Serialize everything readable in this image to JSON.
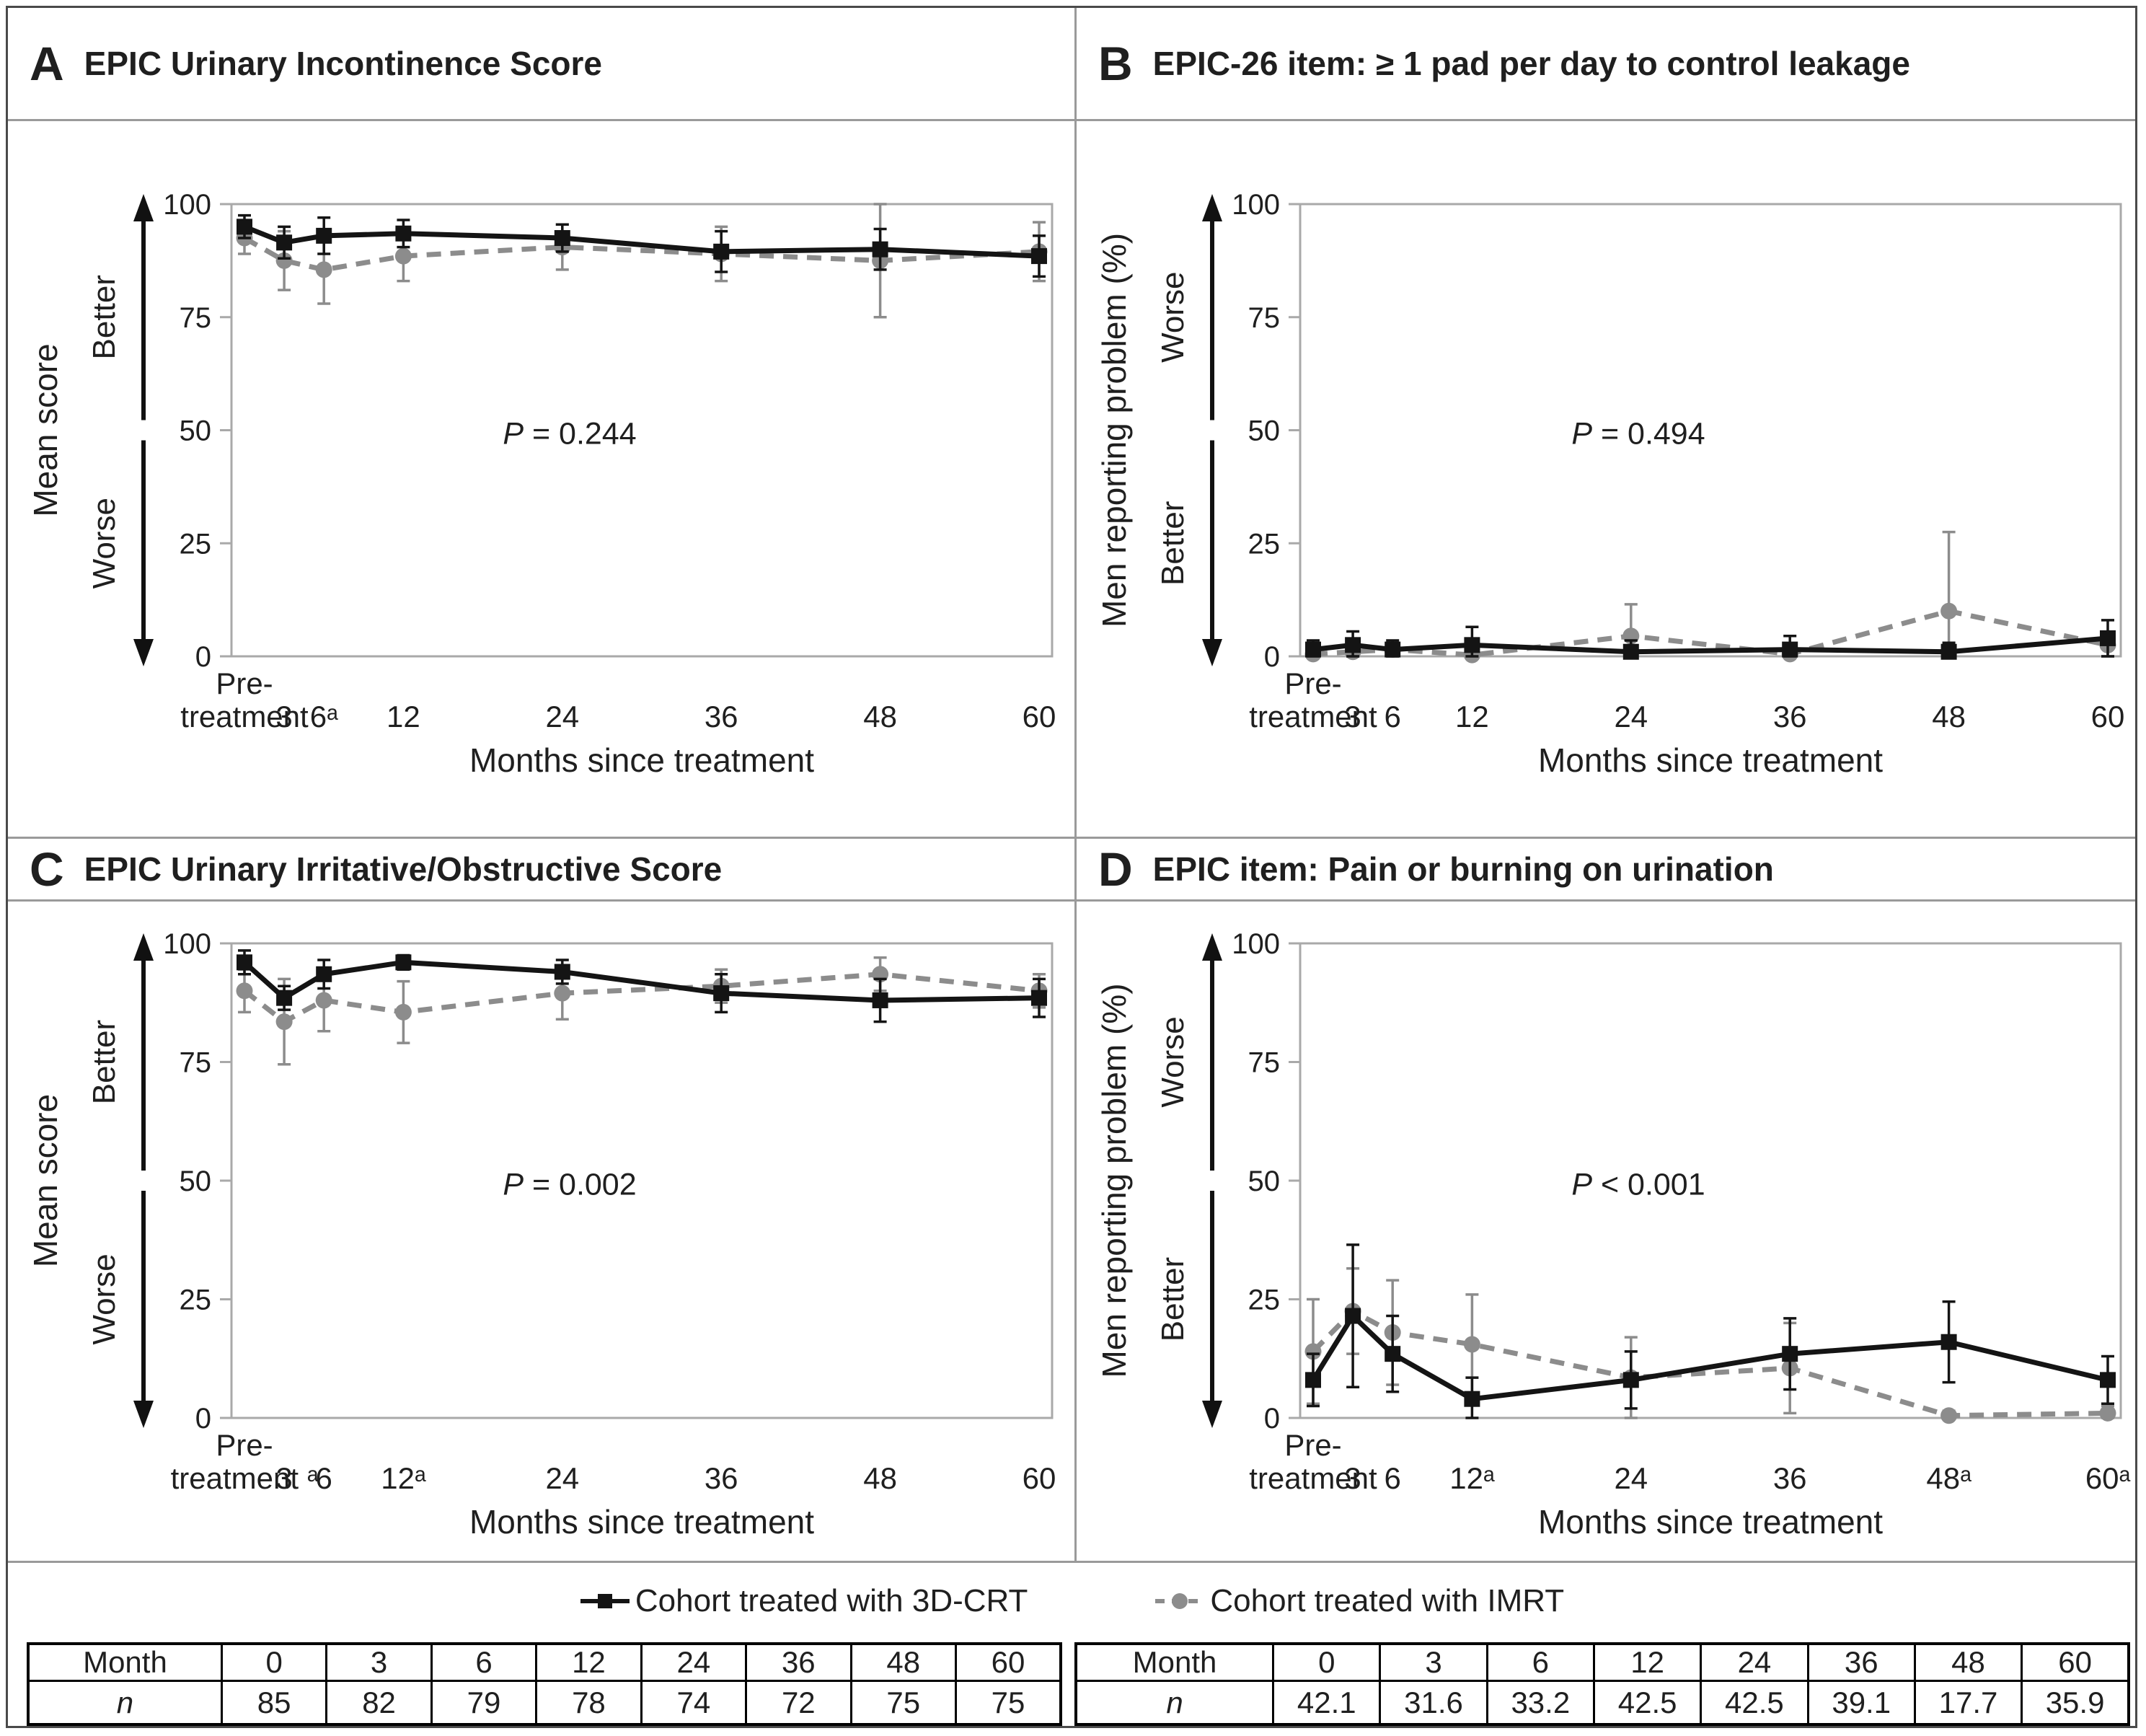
{
  "colors": {
    "crt_black": "#141414",
    "imrt_gray": "#8c8c8c",
    "plot_frame_gray": "#a9a9a9",
    "separator_gray": "#9a9a9a"
  },
  "legend": {
    "items": [
      {
        "label": "Cohort treated with 3D-CRT",
        "color": "#141414",
        "marker": "square",
        "line": "solid"
      },
      {
        "label": "Cohort treated with IMRT",
        "color": "#8c8c8c",
        "marker": "circle",
        "line": "dashed"
      }
    ]
  },
  "chart_data": [
    {
      "letter": "A",
      "title": "EPIC Urinary Incontinence Score",
      "type": "line",
      "ylabel": "Mean score",
      "direction_top": "Better",
      "direction_bottom": "Worse",
      "p_value": "P = 0.244",
      "xlabel": "Months since treatment",
      "ylim": [
        0,
        100
      ],
      "yticks": [
        0,
        25,
        50,
        75,
        100
      ],
      "x_months": [
        0,
        3,
        6,
        12,
        24,
        36,
        48,
        60
      ],
      "x_tick_labels": [
        "Pre-|treatment",
        "3",
        "6ᵃ",
        "12",
        "24",
        "36",
        "48",
        "60"
      ],
      "series": [
        {
          "name": "Cohort treated with 3D-CRT",
          "color": "#141414",
          "marker": "square",
          "line": "solid",
          "values": [
            95,
            91.5,
            93,
            93.5,
            92.5,
            89.5,
            90,
            88.5
          ],
          "stderr": [
            2.5,
            3.5,
            4,
            3,
            3,
            4.5,
            4.5,
            4.5
          ]
        },
        {
          "name": "Cohort treated with IMRT",
          "color": "#8c8c8c",
          "marker": "circle",
          "line": "dashed",
          "values": [
            92.5,
            87.5,
            85.5,
            88.5,
            90.5,
            89,
            87.5,
            89.5
          ],
          "stderr": [
            3.5,
            6.5,
            7.5,
            5.5,
            5,
            6,
            12.5,
            6.5
          ]
        }
      ]
    },
    {
      "letter": "B",
      "title": "EPIC-26 item: ≥ 1 pad per day to control leakage",
      "type": "line",
      "ylabel": "Men reporting problem (%)",
      "direction_top": "Worse",
      "direction_bottom": "Better",
      "p_value": "P = 0.494",
      "xlabel": "Months since treatment",
      "ylim": [
        0,
        100
      ],
      "yticks": [
        0,
        25,
        50,
        75,
        100
      ],
      "x_months": [
        0,
        3,
        6,
        12,
        24,
        36,
        48,
        60
      ],
      "x_tick_labels": [
        "Pre-|treatment",
        "3",
        "6",
        "12",
        "24",
        "36",
        "48",
        "60"
      ],
      "series": [
        {
          "name": "Cohort treated with 3D-CRT",
          "color": "#141414",
          "marker": "square",
          "line": "solid",
          "values": [
            1.5,
            2.5,
            1.5,
            2.5,
            1,
            1.5,
            1,
            4
          ],
          "stderr": [
            2,
            3,
            2,
            4,
            2.5,
            3,
            2,
            4
          ]
        },
        {
          "name": "Cohort treated with IMRT",
          "color": "#8c8c8c",
          "marker": "circle",
          "line": "dashed",
          "values": [
            0.5,
            1,
            1.5,
            0.3,
            4.5,
            0.5,
            10,
            2.5
          ],
          "stderr": [
            1,
            2,
            1.5,
            1,
            7,
            1.5,
            17.5,
            2.5
          ]
        }
      ]
    },
    {
      "letter": "C",
      "title": "EPIC Urinary Irritative/Obstructive Score",
      "type": "line",
      "ylabel": "Mean score",
      "direction_top": "Better",
      "direction_bottom": "Worse",
      "p_value": "P = 0.002",
      "xlabel": "Months since treatment",
      "ylim": [
        0,
        100
      ],
      "yticks": [
        0,
        25,
        50,
        75,
        100
      ],
      "x_months": [
        0,
        3,
        6,
        12,
        24,
        36,
        48,
        60
      ],
      "x_tick_labels": [
        "Pre-|treatment ᵃ",
        "3",
        "6",
        "12ᵃ",
        "24",
        "36",
        "48",
        "60"
      ],
      "series": [
        {
          "name": "Cohort treated with 3D-CRT",
          "color": "#141414",
          "marker": "square",
          "line": "solid",
          "values": [
            96,
            88.5,
            93.5,
            96,
            94,
            89.5,
            88,
            88.5
          ],
          "stderr": [
            2.5,
            2.5,
            3,
            1.5,
            2.5,
            4,
            4.5,
            4
          ]
        },
        {
          "name": "Cohort treated with IMRT",
          "color": "#8c8c8c",
          "marker": "circle",
          "line": "dashed",
          "values": [
            90,
            83.5,
            88,
            85.5,
            89.5,
            91,
            93.5,
            90
          ],
          "stderr": [
            4.5,
            9,
            6.5,
            6.5,
            5.5,
            3.5,
            3.5,
            3.5
          ]
        }
      ]
    },
    {
      "letter": "D",
      "title": "EPIC item: Pain or burning on urination",
      "type": "line",
      "ylabel": "Men reporting problem (%)",
      "direction_top": "Worse",
      "direction_bottom": "Better",
      "p_value": "P < 0.001",
      "xlabel": "Months since treatment",
      "ylim": [
        0,
        100
      ],
      "yticks": [
        0,
        25,
        50,
        75,
        100
      ],
      "x_months": [
        0,
        3,
        6,
        12,
        24,
        36,
        48,
        60
      ],
      "x_tick_labels": [
        "Pre-|treatment",
        "3",
        "6",
        "12ᵃ",
        "24",
        "36",
        "48ᵃ",
        "60ᵃ"
      ],
      "series": [
        {
          "name": "Cohort treated with 3D-CRT",
          "color": "#141414",
          "marker": "square",
          "line": "solid",
          "values": [
            8,
            21.5,
            13.5,
            4,
            8,
            13.5,
            16,
            8
          ],
          "stderr": [
            5.5,
            15,
            8,
            4.5,
            6,
            7.5,
            8.5,
            5
          ]
        },
        {
          "name": "Cohort treated with IMRT",
          "color": "#8c8c8c",
          "marker": "circle",
          "line": "dashed",
          "values": [
            14,
            22.5,
            18,
            15.5,
            8.5,
            10.5,
            0.5,
            1
          ],
          "stderr": [
            11,
            9,
            11,
            10.5,
            8.5,
            9.5,
            1,
            1.5
          ]
        }
      ]
    }
  ],
  "tables": [
    {
      "header": [
        "Month",
        "0",
        "3",
        "6",
        "12",
        "24",
        "36",
        "48",
        "60"
      ],
      "rows": [
        [
          "n",
          "85",
          "82",
          "79",
          "78",
          "74",
          "72",
          "75",
          "75"
        ]
      ]
    },
    {
      "header": [
        "Month",
        "0",
        "3",
        "6",
        "12",
        "24",
        "36",
        "48",
        "60"
      ],
      "rows": [
        [
          "n",
          "42.1",
          "31.6",
          "33.2",
          "42.5",
          "42.5",
          "39.1",
          "17.7",
          "35.9"
        ]
      ]
    }
  ]
}
